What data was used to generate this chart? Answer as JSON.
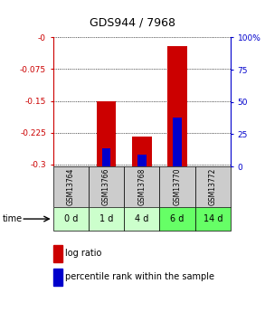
{
  "title": "GDS944 / 7968",
  "samples": [
    "GSM13764",
    "GSM13766",
    "GSM13768",
    "GSM13770",
    "GSM13772"
  ],
  "time_labels": [
    "0 d",
    "1 d",
    "4 d",
    "6 d",
    "14 d"
  ],
  "log_ratio_top": [
    0.0,
    -0.15,
    -0.235,
    -0.02,
    0.0
  ],
  "log_ratio_bottom": [
    0.0,
    -0.305,
    -0.305,
    -0.305,
    0.0
  ],
  "percentile_rank": [
    0.0,
    0.14,
    0.09,
    0.38,
    0.0
  ],
  "ylim_left": [
    -0.305,
    0.0
  ],
  "yticks_left": [
    0.0,
    -0.075,
    -0.15,
    -0.225,
    -0.3
  ],
  "ytick_labels_left": [
    "-0",
    "-0.075",
    "-0.15",
    "-0.225",
    "-0.3"
  ],
  "ylim_right": [
    0.0,
    1.0
  ],
  "yticks_right": [
    0.0,
    0.25,
    0.5,
    0.75,
    1.0
  ],
  "ytick_labels_right": [
    "0",
    "25",
    "50",
    "75",
    "100%"
  ],
  "bar_color_log": "#cc0000",
  "bar_color_pct": "#0000cc",
  "sample_bg_color": "#cccccc",
  "time_bg_colors": [
    "#ccffcc",
    "#ccffcc",
    "#ccffcc",
    "#66ff66",
    "#66ff66"
  ],
  "bar_width": 0.55,
  "pct_bar_width": 0.25,
  "grid_color": "#000000",
  "left_axis_color": "#cc0000",
  "right_axis_color": "#0000cc",
  "title_fontsize": 9
}
